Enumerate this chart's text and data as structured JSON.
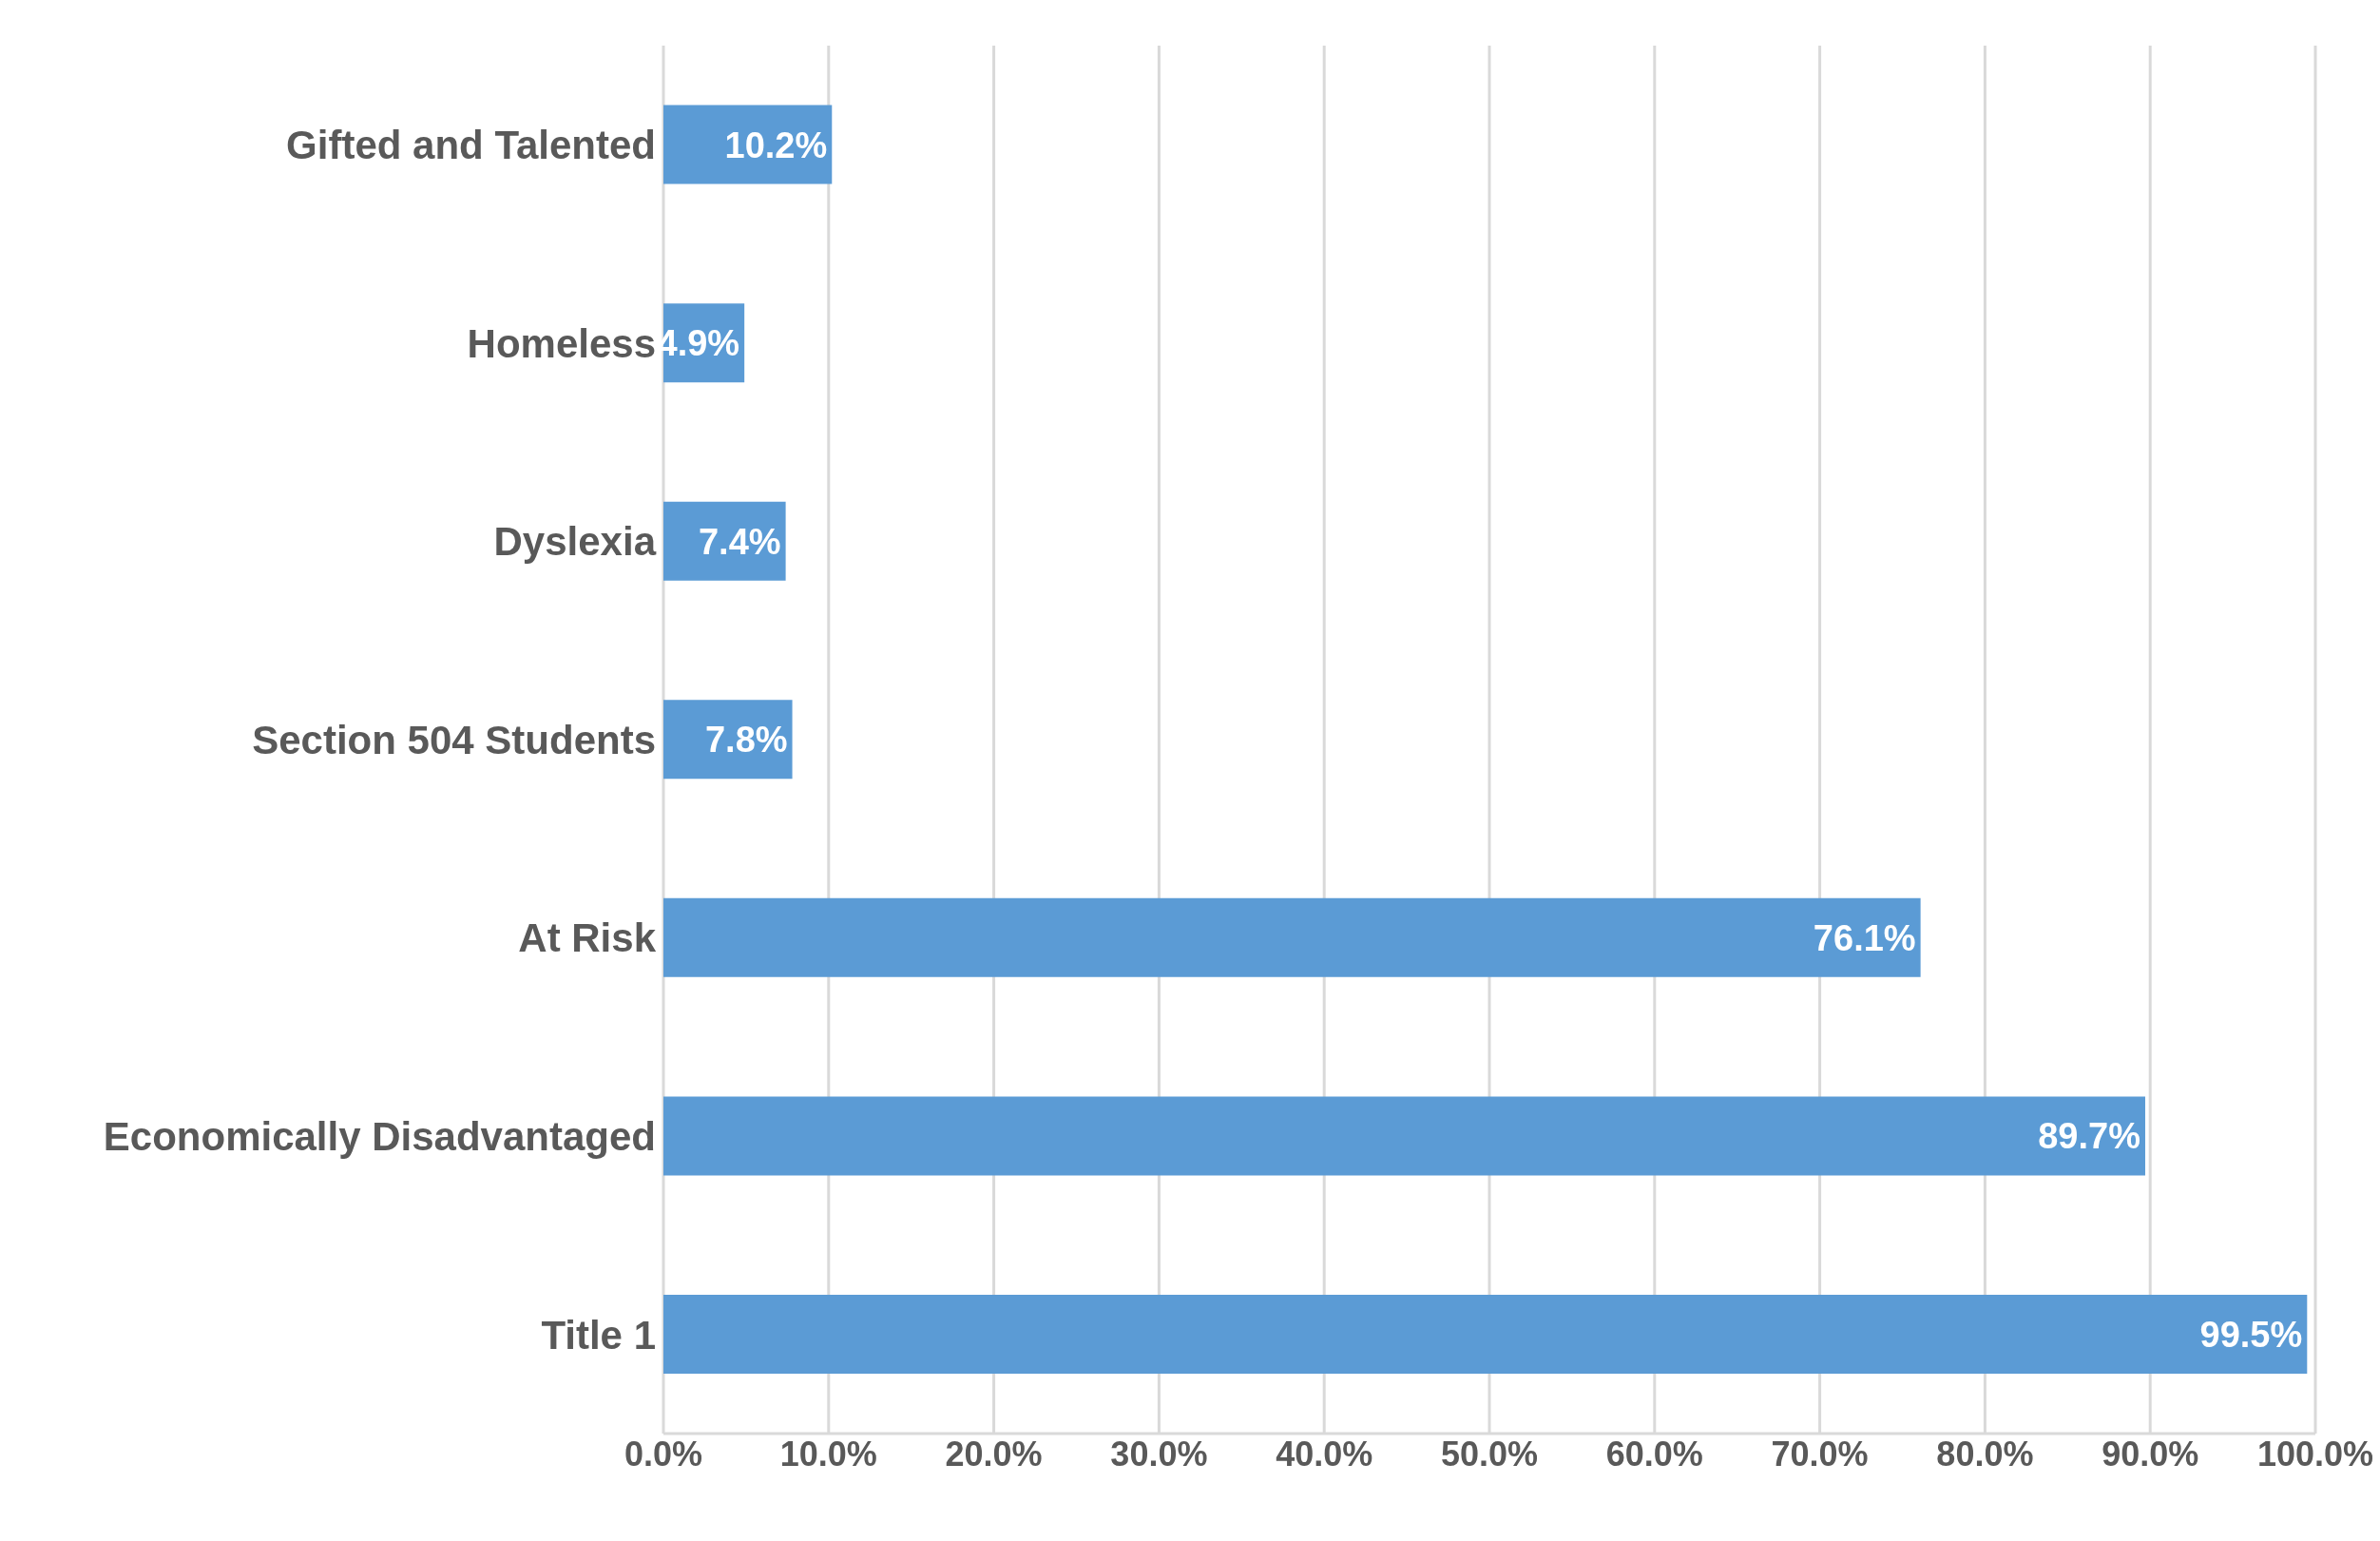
{
  "chart_data": {
    "type": "bar",
    "orientation": "horizontal",
    "categories": [
      "Gifted and Talented",
      "Homeless",
      "Dyslexia",
      "Section 504 Students",
      "At Risk",
      "Economically Disadvantaged",
      "Title 1"
    ],
    "values": [
      10.2,
      4.9,
      7.4,
      7.8,
      76.1,
      89.7,
      99.5
    ],
    "value_labels": [
      "10.2%",
      "4.9%",
      "7.4%",
      "7.8%",
      "76.1%",
      "89.7%",
      "99.5%"
    ],
    "color": "#5b9bd5",
    "xlim": [
      0,
      100
    ],
    "xticks": [
      {
        "value": 0,
        "label": "0.0%"
      },
      {
        "value": 10,
        "label": "10.0%"
      },
      {
        "value": 20,
        "label": "20.0%"
      },
      {
        "value": 30,
        "label": "30.0%"
      },
      {
        "value": 40,
        "label": "40.0%"
      },
      {
        "value": 50,
        "label": "50.0%"
      },
      {
        "value": 60,
        "label": "60.0%"
      },
      {
        "value": 70,
        "label": "70.0%"
      },
      {
        "value": 80,
        "label": "80.0%"
      },
      {
        "value": 90,
        "label": "90.0%"
      },
      {
        "value": 100,
        "label": "100.0%"
      }
    ],
    "grid": "x"
  }
}
